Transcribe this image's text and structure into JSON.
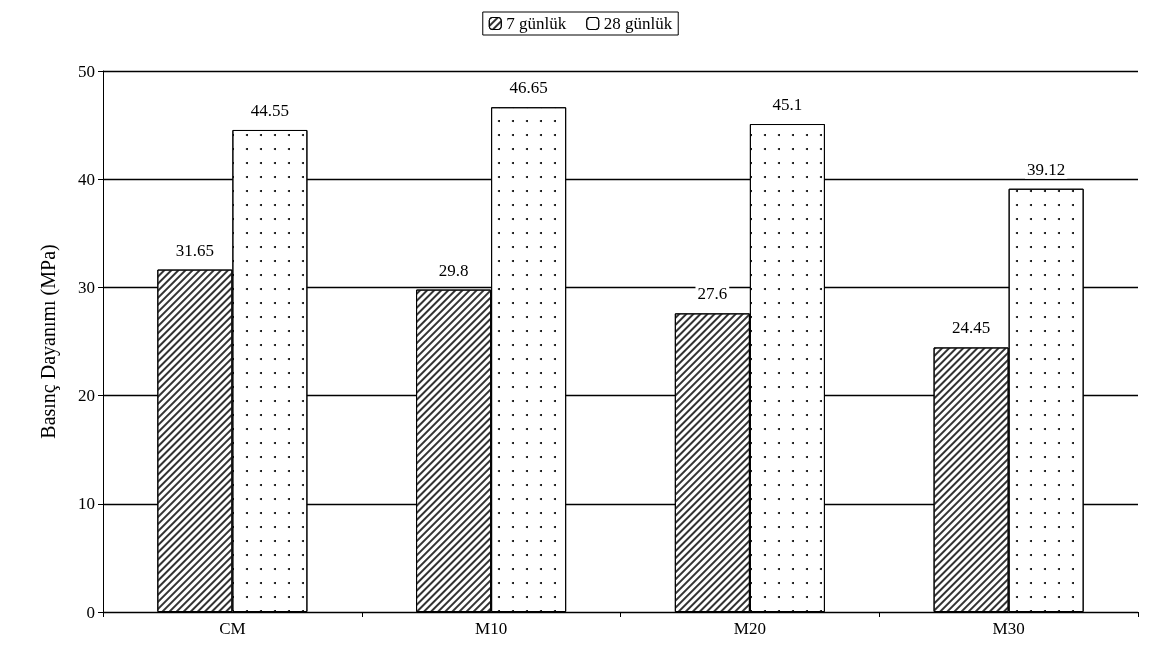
{
  "chart_data": {
    "type": "bar",
    "ylabel": "Basınç Dayanımı (MPa)",
    "categories": [
      "CM",
      "M10",
      "M20",
      "M30"
    ],
    "series": [
      {
        "name": "7 günlük",
        "color": "#ffffff",
        "values": [
          31.65,
          29.8,
          27.6,
          24.45
        ]
      },
      {
        "name": "28 günlük",
        "color": "#ffffff",
        "values": [
          44.55,
          46.65,
          45.1,
          39.12
        ]
      }
    ],
    "ylim": [
      0,
      50
    ],
    "yticks": [
      0,
      10,
      20,
      30,
      40,
      50
    ],
    "grid": "y",
    "legend": "top",
    "data_labels": true
  }
}
